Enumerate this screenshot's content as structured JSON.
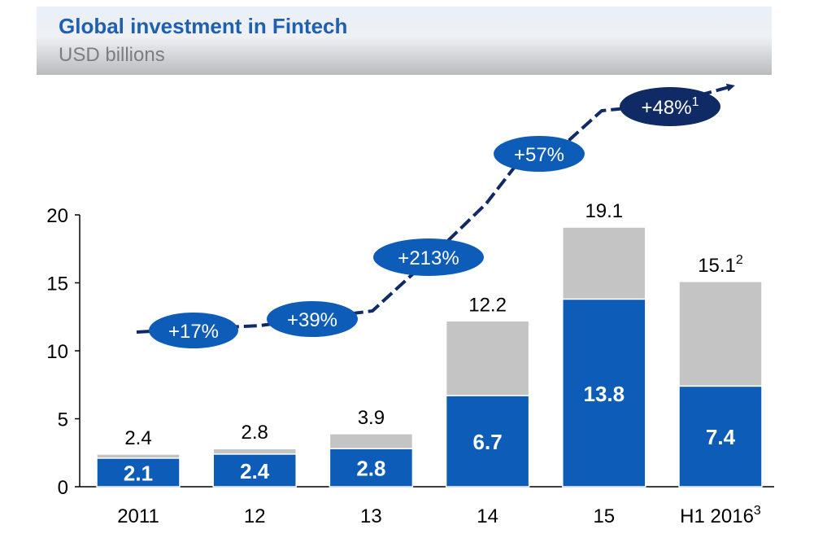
{
  "header": {
    "title": "Global investment in Fintech",
    "subtitle": "USD billions"
  },
  "colors": {
    "primary": "#0d5cb8",
    "secondary": "#c4c4c4",
    "arrow": "#102a66",
    "last_badge": "#102a66"
  },
  "chart_data": {
    "type": "bar",
    "stacked": true,
    "categories": [
      "2011",
      "12",
      "13",
      "14",
      "15",
      "H1 2016"
    ],
    "category_superscripts": [
      "",
      "",
      "",
      "",
      "",
      "3"
    ],
    "series": [
      {
        "values": [
          2.1,
          2.4,
          2.8,
          6.7,
          13.8,
          7.4
        ]
      },
      {
        "values": [
          0.3,
          0.4,
          1.1,
          5.5,
          5.3,
          7.7
        ]
      }
    ],
    "totals": [
      "2.4",
      "2.8",
      "3.9",
      "12.2",
      "19.1",
      "15.1"
    ],
    "total_superscripts": [
      "",
      "",
      "",
      "",
      "",
      "2"
    ],
    "inner_labels": [
      "2.1",
      "2.4",
      "2.8",
      "6.7",
      "13.8",
      "7.4"
    ],
    "growth_rates": [
      "+17%",
      "+39%",
      "+213%",
      "+57%",
      "+48%"
    ],
    "growth_superscripts": [
      "",
      "",
      "",
      "",
      "1"
    ],
    "yticks": [
      "0",
      "5",
      "10",
      "15",
      "20"
    ],
    "ylim": [
      0,
      20
    ],
    "grid": false,
    "legend": "none"
  }
}
